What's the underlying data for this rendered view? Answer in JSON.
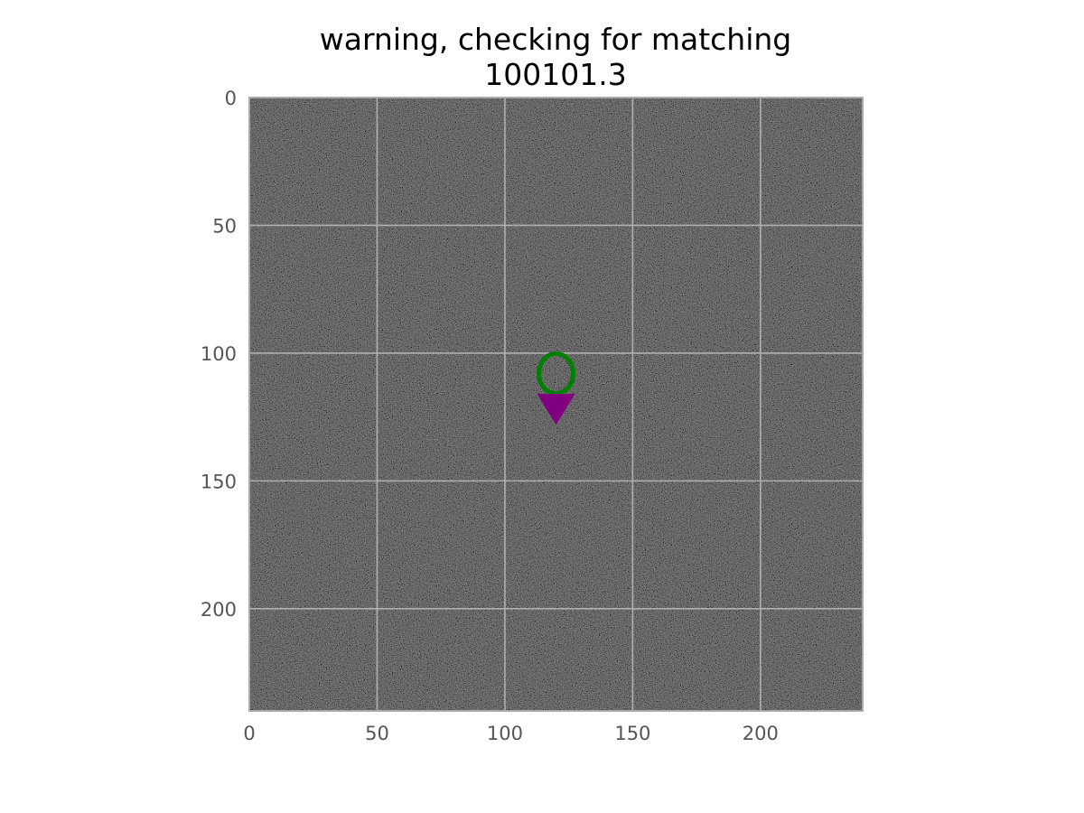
{
  "chart_data": {
    "type": "heatmap",
    "title_lines": [
      "warning, checking for matching",
      "100101.3"
    ],
    "xlabel": "",
    "ylabel": "",
    "image_size": [
      240,
      240
    ],
    "xlim": [
      0,
      240
    ],
    "ylim": [
      240,
      0
    ],
    "x_ticks": [
      0,
      50,
      100,
      150,
      200
    ],
    "y_ticks": [
      0,
      50,
      100,
      150,
      200
    ],
    "x_tick_labels": [
      "0",
      "50",
      "100",
      "150",
      "200"
    ],
    "y_tick_labels": [
      "0",
      "50",
      "100",
      "150",
      "200"
    ],
    "grid": true,
    "colormap": "gray",
    "background_description": "dark noise",
    "markers": [
      {
        "kind": "circle",
        "x": 120,
        "y": 108,
        "color": "#008000",
        "filled": false
      },
      {
        "kind": "triangle-down",
        "x": 120,
        "y": 122,
        "color": "#800080",
        "filled": true
      }
    ]
  },
  "colors": {
    "grid": "#b0b0b0",
    "frame": "#aaaaaa",
    "tick_text": "#555555",
    "title_text": "#000000"
  }
}
